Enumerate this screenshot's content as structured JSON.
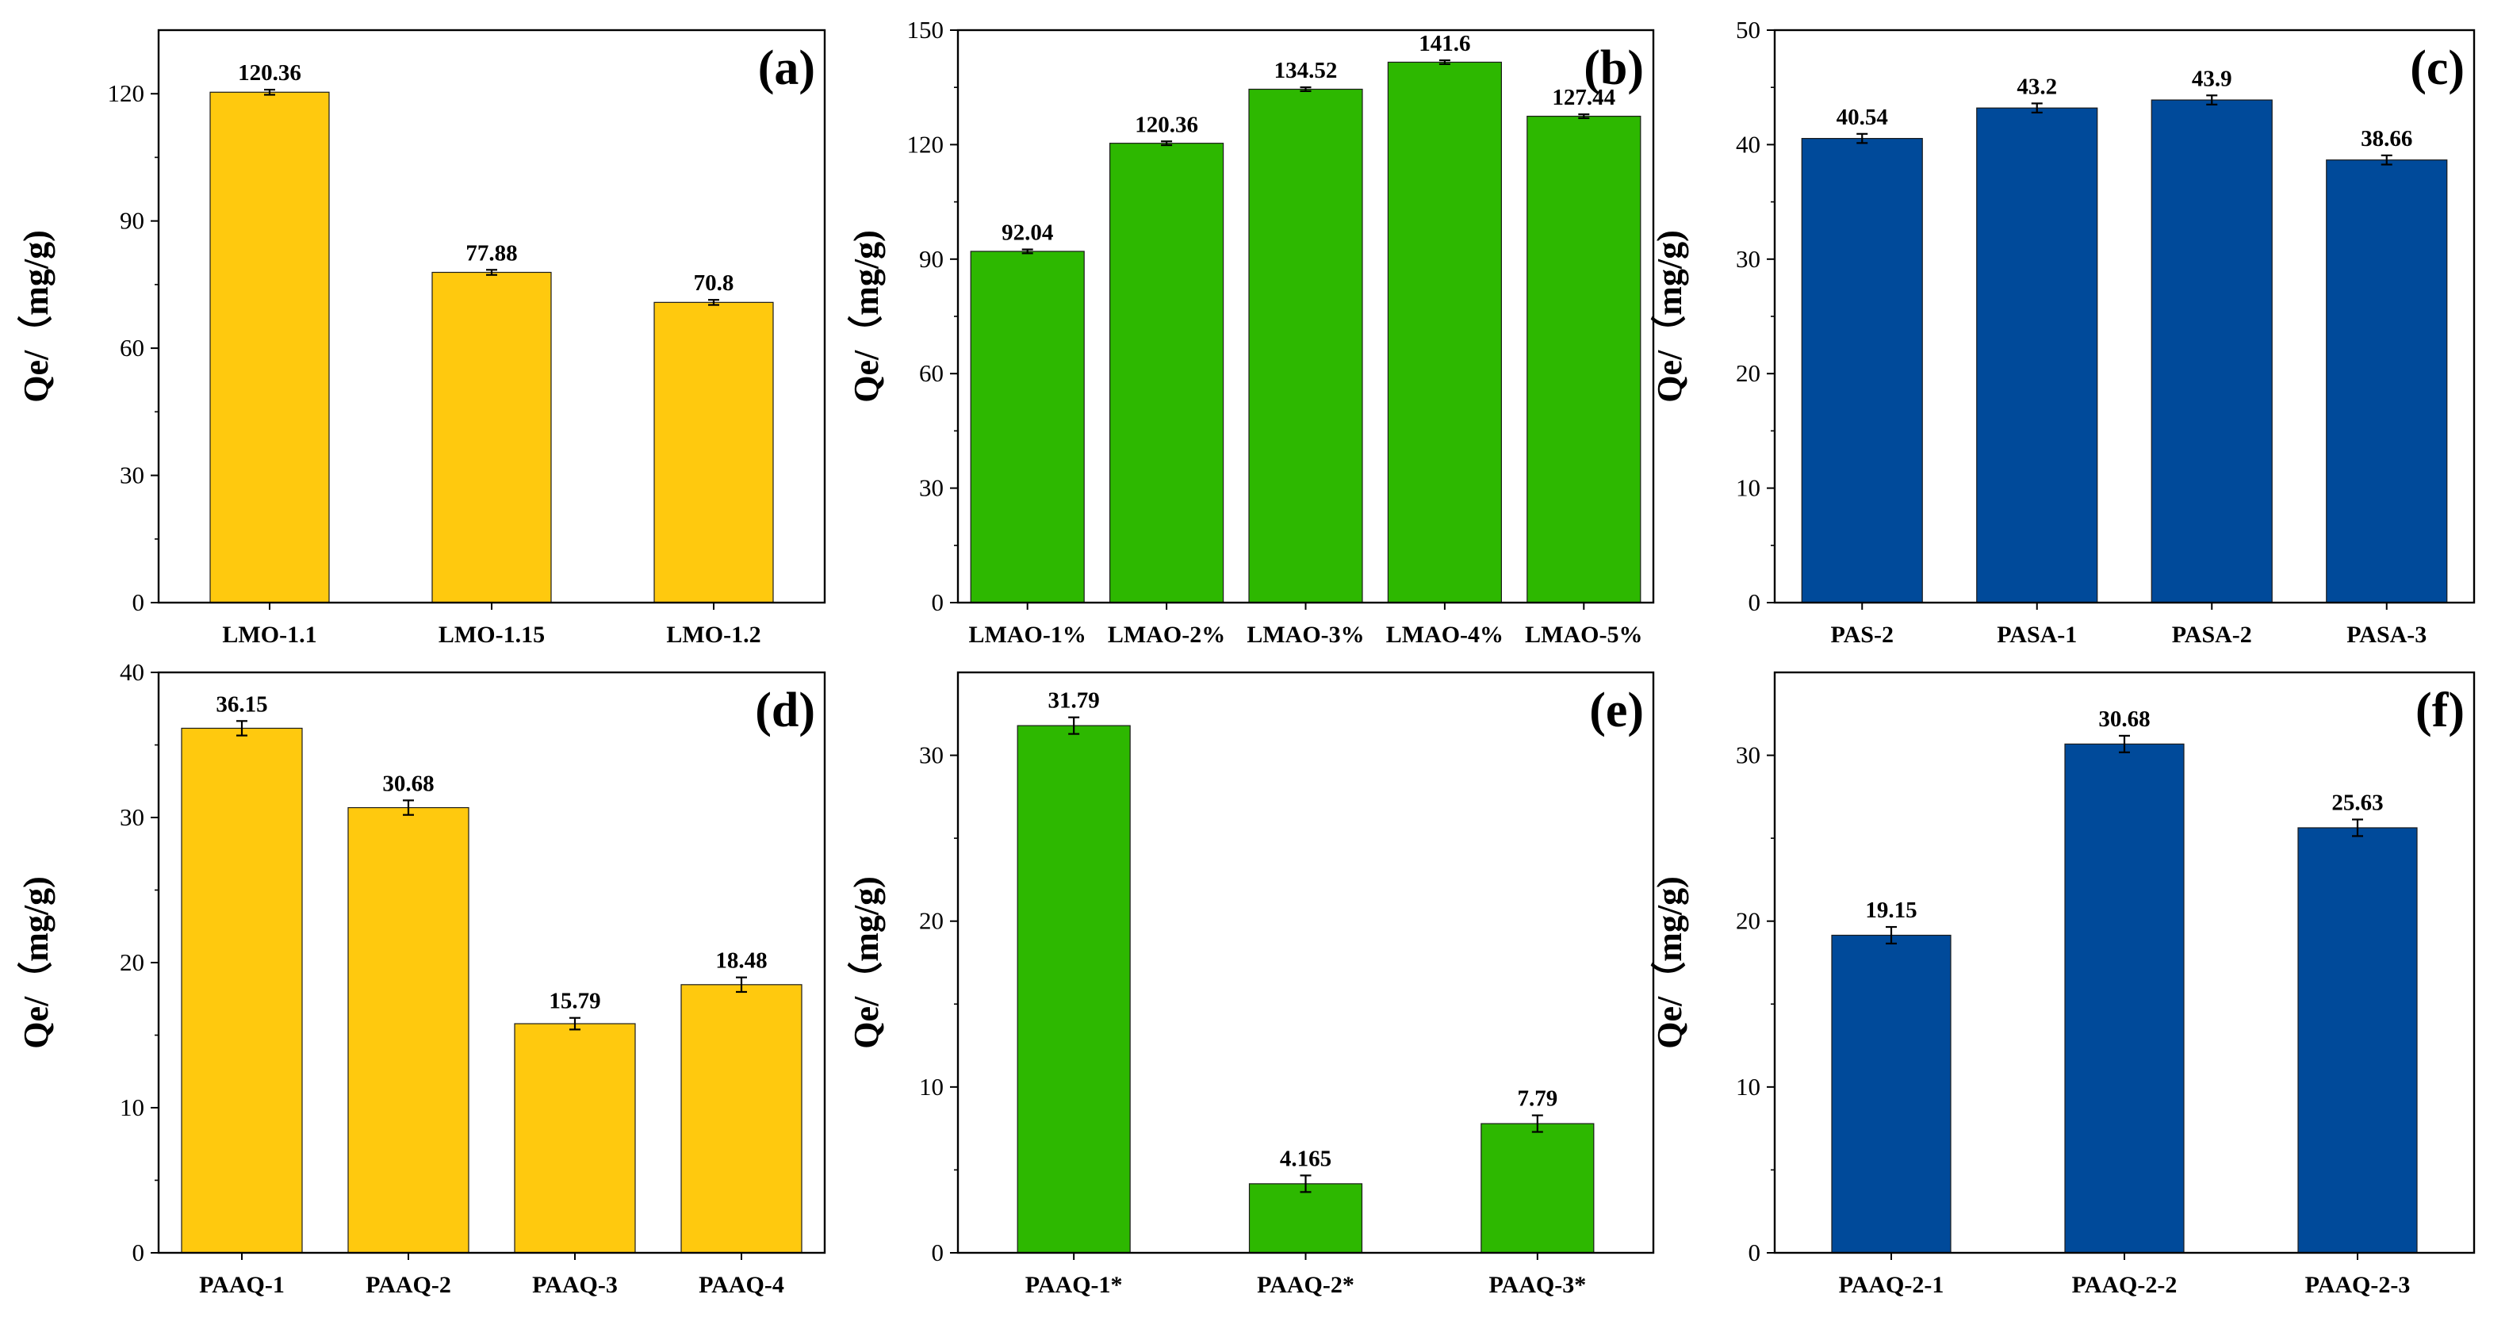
{
  "chart_data": [
    {
      "type": "bar",
      "panel": "(a)",
      "ylabel": "Qe/（mg/g)",
      "ylim": [
        0,
        135
      ],
      "yticks": [
        0,
        30,
        60,
        90,
        120
      ],
      "categories": [
        "LMO-1.1",
        "LMO-1.15",
        "LMO-1.2"
      ],
      "values": [
        120.36,
        77.88,
        70.8
      ],
      "labels": [
        "120.36",
        "77.88",
        "70.8"
      ],
      "errors": [
        0.6,
        0.6,
        0.6
      ],
      "color": "#FFC90E"
    },
    {
      "type": "bar",
      "panel": "(b)",
      "ylabel": "Qe/（mg/g)",
      "ylim": [
        0,
        150
      ],
      "yticks": [
        0,
        30,
        60,
        90,
        120,
        150
      ],
      "categories": [
        "LMAO-1%",
        "LMAO-2%",
        "LMAO-3%",
        "LMAO-4%",
        "LMAO-5%"
      ],
      "values": [
        92.04,
        120.36,
        134.52,
        141.6,
        127.44
      ],
      "labels": [
        "92.04",
        "120.36",
        "134.52",
        "141.6",
        "127.44"
      ],
      "errors": [
        0.5,
        0.5,
        0.5,
        0.5,
        0.5
      ],
      "color": "#2DB800"
    },
    {
      "type": "bar",
      "panel": "(c)",
      "ylabel": "Qe/（mg/g)",
      "ylim": [
        0,
        50
      ],
      "yticks": [
        0,
        10,
        20,
        30,
        40,
        50
      ],
      "categories": [
        "PAS-2",
        "PASA-1",
        "PASA-2",
        "PASA-3"
      ],
      "values": [
        40.54,
        43.2,
        43.9,
        38.66
      ],
      "labels": [
        "40.54",
        "43.2",
        "43.9",
        "38.66"
      ],
      "errors": [
        0.4,
        0.4,
        0.4,
        0.4
      ],
      "color": "#004A9A"
    },
    {
      "type": "bar",
      "panel": "(d)",
      "ylabel": "Qe/（mg/g)",
      "ylim": [
        0,
        40
      ],
      "yticks": [
        0,
        10,
        20,
        30,
        40
      ],
      "categories": [
        "PAAQ-1",
        "PAAQ-2",
        "PAAQ-3",
        "PAAQ-4"
      ],
      "values": [
        36.15,
        30.68,
        15.79,
        18.48
      ],
      "labels": [
        "36.15",
        "30.68",
        "15.79",
        "18.48"
      ],
      "errors": [
        0.5,
        0.5,
        0.4,
        0.5
      ],
      "color": "#FFC90E"
    },
    {
      "type": "bar",
      "panel": "(e)",
      "ylabel": "Qe/（mg/g)",
      "ylim": [
        0,
        35
      ],
      "yticks": [
        0,
        10,
        20,
        30
      ],
      "categories": [
        "PAAQ-1*",
        "PAAQ-2*",
        "PAAQ-3*"
      ],
      "values": [
        31.79,
        4.165,
        7.79
      ],
      "labels": [
        "31.79",
        "4.165",
        "7.79"
      ],
      "errors": [
        0.5,
        0.5,
        0.5
      ],
      "color": "#2DB800"
    },
    {
      "type": "bar",
      "panel": "(f)",
      "ylabel": "Qe/（mg/g)",
      "ylim": [
        0,
        35
      ],
      "yticks": [
        0,
        10,
        20,
        30
      ],
      "categories": [
        "PAAQ-2-1",
        "PAAQ-2-2",
        "PAAQ-2-3"
      ],
      "values": [
        19.15,
        30.68,
        25.63
      ],
      "labels": [
        "19.15",
        "30.68",
        "25.63"
      ],
      "errors": [
        0.5,
        0.5,
        0.5
      ],
      "color": "#004A9A"
    }
  ]
}
